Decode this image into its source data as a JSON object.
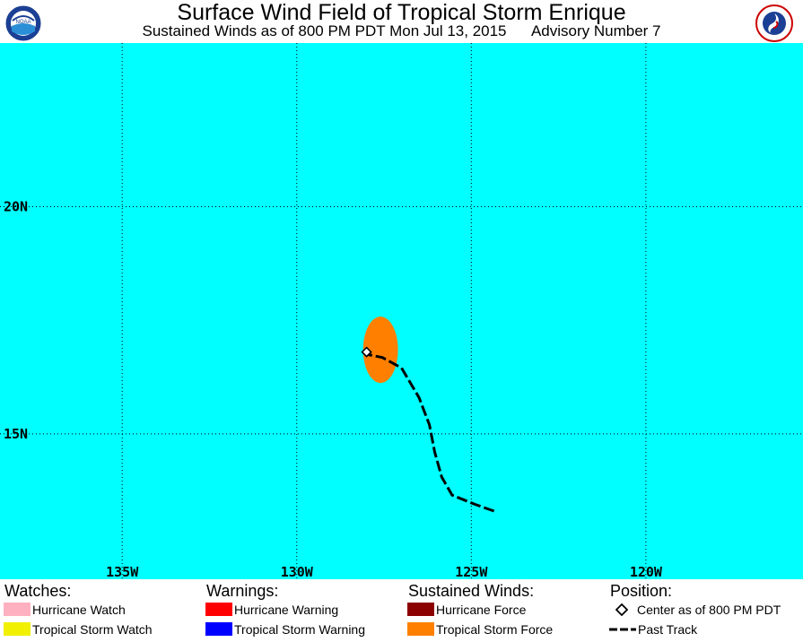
{
  "title": "Surface Wind Field of Tropical Storm Enrique",
  "subtitle": {
    "valid": "Sustained Winds as of 800 PM PDT Mon Jul 13, 2015",
    "advisory": "Advisory Number 7"
  },
  "logos": {
    "left": "noaa-logo",
    "right": "nws-logo",
    "left_text": "NOAA"
  },
  "map": {
    "background_color": "#00ffff",
    "longitude_labels": [
      "135W",
      "130W",
      "125W",
      "120W"
    ],
    "latitude_labels": [
      "20N",
      "15N"
    ],
    "longitudes": [
      -135,
      -130,
      -125,
      -120
    ],
    "latitudes": [
      20,
      15
    ],
    "lon_range": [
      -138.5,
      -115.5
    ],
    "lat_range": [
      11.8,
      23.6
    ],
    "grid": "dotted",
    "center": {
      "lon": -128.0,
      "lat": 16.8
    },
    "tropical_storm_wind_field": {
      "center_lon": -127.6,
      "center_lat": 16.85,
      "lon_radius": 0.5,
      "lat_radius": 0.73,
      "color": "#ff8000"
    },
    "past_track": [
      [
        -124.35,
        13.3
      ],
      [
        -124.9,
        13.45
      ],
      [
        -125.55,
        13.65
      ],
      [
        -125.85,
        14.05
      ],
      [
        -126.05,
        14.6
      ],
      [
        -126.2,
        15.2
      ],
      [
        -126.5,
        15.8
      ],
      [
        -127.0,
        16.45
      ],
      [
        -127.55,
        16.68
      ],
      [
        -128.0,
        16.75
      ]
    ]
  },
  "legend": {
    "watches": {
      "heading": "Watches:",
      "items": [
        {
          "label": "Hurricane Watch",
          "color": "#ffb0c0"
        },
        {
          "label": "Tropical Storm Watch",
          "color": "#f0f000"
        }
      ]
    },
    "warnings": {
      "heading": "Warnings:",
      "items": [
        {
          "label": "Hurricane Warning",
          "color": "#ff0000"
        },
        {
          "label": "Tropical Storm Warning",
          "color": "#0000ff"
        }
      ]
    },
    "winds": {
      "heading": "Sustained Winds:",
      "items": [
        {
          "label": "Hurricane Force",
          "color": "#8b0000"
        },
        {
          "label": "Tropical Storm Force",
          "color": "#ff8000"
        }
      ]
    },
    "position": {
      "heading": "Position:",
      "items": [
        {
          "label": "Center as of 800 PM PDT",
          "symbol": "diamond-icon"
        },
        {
          "label": "Past Track",
          "symbol": "dashed-line-icon"
        }
      ]
    }
  }
}
